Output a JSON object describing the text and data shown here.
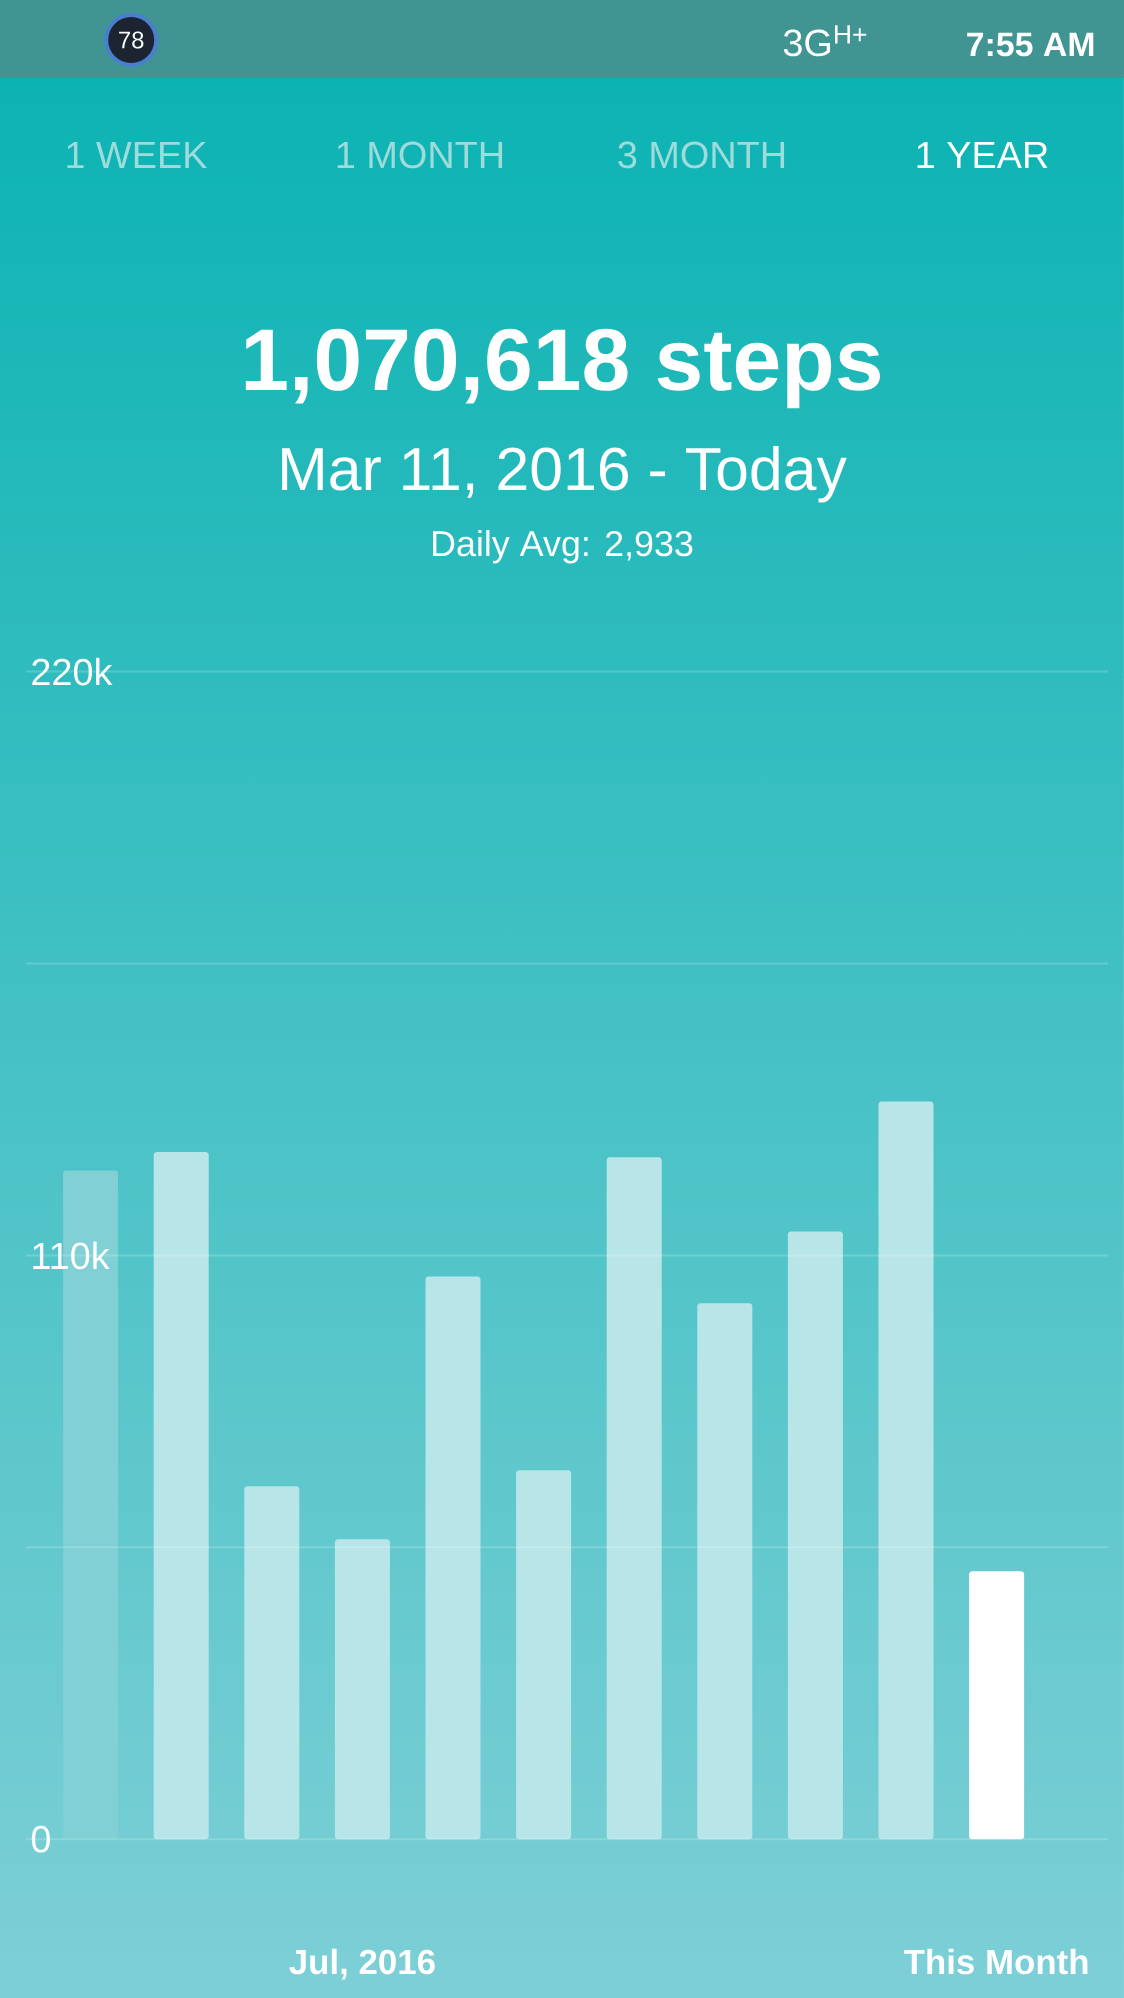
{
  "chart_data": {
    "type": "bar",
    "title": "1,070,618 steps",
    "subtitle": "Mar 11, 2016 - Today",
    "annotations": [
      "Daily Avg: 2,933",
      "1 WEEK",
      "1 MONTH",
      "3 MONTH",
      "1 YEAR",
      "78",
      "3G$^{H+}$",
      "7:55 AM"
    ],
    "categories": [
      null,
      null,
      null,
      "Jul, 2016",
      null,
      null,
      null,
      null,
      null,
      null,
      "This Month"
    ],
    "values": [
      126000,
      129500,
      66500,
      56500,
      106000,
      69500,
      128500,
      101000,
      114500,
      139000,
      50500
    ],
    "colors": [
      "#80d0d5",
      "#b8e6e8",
      "#b8e6e8",
      "#b8e6e8",
      "#b8e6e8",
      "#b8e6e8",
      "#b8e6e8",
      "#b8e6e8",
      "#b8e6e8",
      "#b8e6e8",
      "#ffffff"
    ],
    "ylim": [
      0,
      220000
    ],
    "yticks": [
      0,
      {
        "value": 55000,
        "label": null
      },
      {
        "value": 110000,
        "label": "110k"
      },
      {
        "value": 165000,
        "label": null
      },
      {
        "value": 220000,
        "label": "220k"
      }
    ],
    "grid": "y"
  }
}
